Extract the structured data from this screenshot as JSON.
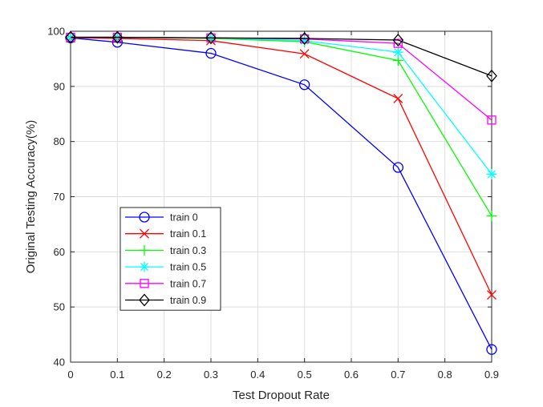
{
  "chart_data": {
    "type": "line",
    "title": "",
    "xlabel": "Test Dropout Rate",
    "ylabel": "Original Testing Accuracy(%)",
    "xlim": [
      0,
      0.9
    ],
    "ylim": [
      40,
      100
    ],
    "xticks": [
      0,
      0.1,
      0.2,
      0.3,
      0.4,
      0.5,
      0.6,
      0.7,
      0.8,
      0.9
    ],
    "yticks": [
      40,
      50,
      60,
      70,
      80,
      90,
      100
    ],
    "grid": true,
    "legend_position": "lower-left",
    "x": [
      0,
      0.1,
      0.3,
      0.5,
      0.7,
      0.9
    ],
    "series": [
      {
        "name": "train 0",
        "color": "#0000ff",
        "marker": "circle",
        "values": [
          98.8,
          98.0,
          96.0,
          90.3,
          75.3,
          42.3
        ]
      },
      {
        "name": "train 0.1",
        "color": "#ff0000",
        "marker": "x",
        "values": [
          98.8,
          98.7,
          98.3,
          95.9,
          87.8,
          52.2
        ]
      },
      {
        "name": "train 0.3",
        "color": "#00ff00",
        "marker": "plus",
        "values": [
          98.9,
          98.9,
          98.7,
          98.1,
          94.7,
          66.5
        ]
      },
      {
        "name": "train 0.5",
        "color": "#00ffff",
        "marker": "star",
        "values": [
          98.9,
          98.9,
          98.8,
          98.3,
          96.2,
          74.1
        ]
      },
      {
        "name": "train 0.7",
        "color": "#ff00ff",
        "marker": "square",
        "values": [
          98.9,
          98.9,
          98.8,
          98.6,
          97.8,
          83.9
        ]
      },
      {
        "name": "train 0.9",
        "color": "#000000",
        "marker": "diamond",
        "values": [
          98.9,
          98.9,
          98.8,
          98.7,
          98.4,
          91.9
        ]
      }
    ]
  }
}
